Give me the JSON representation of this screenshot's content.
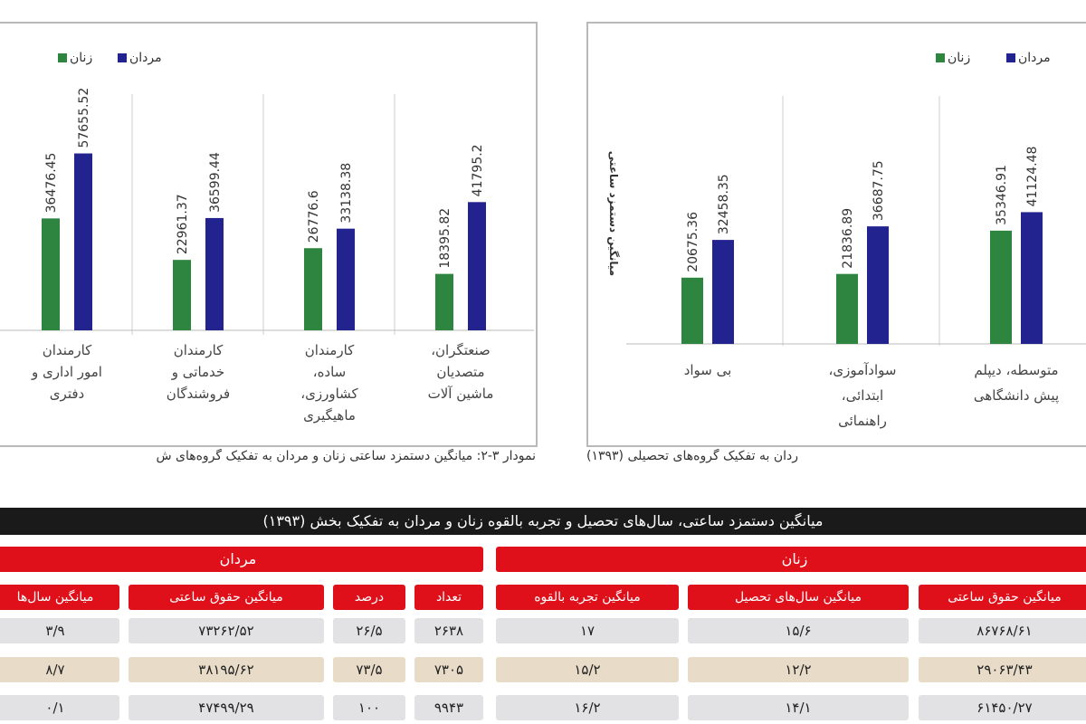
{
  "chart_data": [
    {
      "type": "bar",
      "categories": [
        [
          "کارمندان",
          "امور اداری و",
          "دفتری"
        ],
        [
          "کارمندان",
          "خدماتی و",
          "فروشندگان"
        ],
        [
          "کارمندان",
          "ساده،",
          "کشاورزی،",
          "ماهیگیری"
        ],
        [
          "صنعتگران،",
          "متصدیان",
          "ماشین آلات"
        ]
      ],
      "series": [
        {
          "name": "زنان",
          "values": [
            36476.45,
            22961.37,
            26776.6,
            18395.82
          ],
          "labels": [
            "36476.45",
            "22961.37",
            "26776.6",
            "18395.82"
          ]
        },
        {
          "name": "مردان",
          "values": [
            57655.52,
            36599.44,
            33138.38,
            41795.2
          ],
          "labels": [
            "57655.52",
            "36599.44",
            "33138.38",
            "41795.2"
          ]
        }
      ],
      "legend": [
        "مردان",
        "زنان"
      ],
      "legend_position": "top",
      "caption": "نمودار ۳-۲: میانگین دستمزد ساعتی زنان و مردان به تفکیک گروه‌های ش",
      "ylim": [
        0,
        100000
      ]
    },
    {
      "type": "bar",
      "categories": [
        [
          "بی سواد"
        ],
        [
          "سوادآموزی،",
          "ابتدائی،",
          "راهنمائی"
        ],
        [
          "متوسطه، دیپلم",
          "پیش دانشگاهی"
        ]
      ],
      "series": [
        {
          "name": "زنان",
          "values": [
            20675.36,
            21836.89,
            35346.91
          ],
          "labels": [
            "20675.36",
            "21836.89",
            "35346.91"
          ]
        },
        {
          "name": "مردان",
          "values": [
            32458.35,
            36687.75,
            41124.48
          ],
          "labels": [
            "32458.35",
            "36687.75",
            "41124.48"
          ]
        }
      ],
      "legend": [
        "مردان",
        "زنان"
      ],
      "legend_position": "top",
      "ylabel": "میانگین دستمزد ساعتی",
      "caption": "ردان به تفکیک گروه‌های تحصیلی (۱۳۹۳)",
      "ylim": [
        0,
        100000
      ]
    }
  ],
  "colors": {
    "women": "#2e8540",
    "men": "#23238f",
    "header_red": "#e0101b"
  },
  "table": {
    "title": "میانگین دستمزد ساعتی، سال‌های تحصیل و تجربه بالقوه زنان و مردان به تفکیک بخش (۱۳۹۳)",
    "groups": {
      "women": "زنان",
      "men": "مردان"
    },
    "headers": [
      "میانگین حقوق ساعتی",
      "میانگین سال‌های تحصیل",
      "میانگین تجربه بالقوه",
      "تعداد",
      "درصد",
      "میانگین حقوق ساعتی",
      "میانگین سال‌ها"
    ],
    "rows": [
      [
        "۸۶۷۶۸/۶۱",
        "۱۵/۶",
        "۱۷",
        "۲۶۳۸",
        "۲۶/۵",
        "۷۳۲۶۲/۵۲",
        "۳/۹"
      ],
      [
        "۲۹۰۶۳/۴۳",
        "۱۲/۲",
        "۱۵/۲",
        "۷۳۰۵",
        "۷۳/۵",
        "۳۸۱۹۵/۶۲",
        "۸/۷"
      ],
      [
        "۶۱۴۵۰/۲۷",
        "۱۴/۱",
        "۱۶/۲",
        "۹۹۴۳",
        "۱۰۰",
        "۴۷۴۹۹/۲۹",
        "۰/۱"
      ]
    ]
  }
}
